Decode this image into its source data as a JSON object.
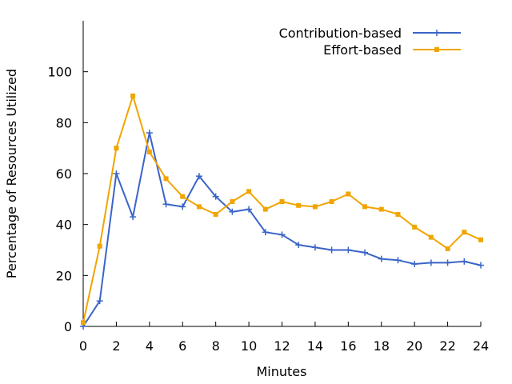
{
  "chart_data": {
    "type": "line",
    "title": "",
    "xlabel": "Minutes",
    "ylabel": "Percentage of Resources Utilized",
    "xlim": [
      0,
      24
    ],
    "ylim": [
      0,
      120
    ],
    "x_ticks": [
      0,
      2,
      4,
      6,
      8,
      10,
      12,
      14,
      16,
      18,
      20,
      22,
      24
    ],
    "y_ticks": [
      0,
      20,
      40,
      60,
      80,
      100
    ],
    "grid": false,
    "legend_position": "top-right",
    "x": [
      0,
      1,
      2,
      3,
      4,
      5,
      6,
      7,
      8,
      9,
      10,
      11,
      12,
      13,
      14,
      15,
      16,
      17,
      18,
      19,
      20,
      21,
      22,
      23,
      24
    ],
    "series": [
      {
        "name": "Contribution-based",
        "color": "#3a64c8",
        "marker": "plus",
        "values": [
          0,
          10,
          60,
          43,
          76,
          48,
          47,
          59,
          51,
          45,
          46,
          37,
          36,
          32,
          31,
          30,
          30,
          29,
          26.5,
          26,
          24.5,
          25,
          25,
          25.5,
          24
        ]
      },
      {
        "name": "Effort-based",
        "color": "#f0a500",
        "marker": "square",
        "values": [
          1.5,
          31.5,
          70,
          90.5,
          68.5,
          58,
          51,
          47,
          44,
          49,
          53,
          46,
          49,
          47.5,
          47,
          49,
          52,
          47,
          46,
          44,
          39,
          35,
          30.5,
          37,
          34
        ]
      }
    ]
  }
}
